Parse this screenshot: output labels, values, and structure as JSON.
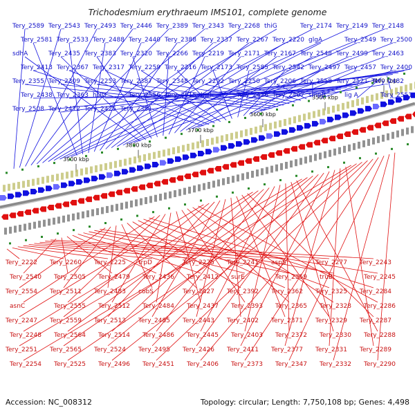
{
  "header": {
    "title": "Trichodesmium erythraeum IMS101, complete genome"
  },
  "footer": {
    "accession": "Accession: NC_008312",
    "summary": "Topology: circular; Length: 7,750,108 bp; Genes: 4,498"
  },
  "scale_ticks": [
    "3900 kbp",
    "3800 kbp",
    "3700 kbp",
    "3600 kbp",
    "3500 kbp",
    "3400 kbp"
  ],
  "colors": {
    "forward": "#1010e0",
    "reverse": "#e01010",
    "backbone": "#888888",
    "marker": "#2a8a2a"
  },
  "forward_genes": [
    "Tery_2589",
    "Tery_2543",
    "Tery_2493",
    "Tery_2446",
    "Tery_2389",
    "Tery_2343",
    "Tery_2268",
    "thiG",
    "Tery_2174",
    "Tery_2149",
    "Tery_2148",
    "Tery_2581",
    "Tery_2533",
    "Tery_2488",
    "Tery_2440",
    "Tery_2388",
    "Tery_2337",
    "Tery_2267",
    "Tery_2220",
    "glgA",
    "Tery_2549",
    "Tery_2500",
    "sdhA",
    "Tery_2435",
    "Tery_2383",
    "Tery_2320",
    "Tery_2266",
    "Tery_2219",
    "Tery_2171",
    "Tery_2167",
    "Tery_2548",
    "Tery_2499",
    "Tery_2463",
    "Tery_2413",
    "Tery_2367",
    "Tery_2317",
    "Tery_2259",
    "Tery_2216",
    "Tery_2173",
    "Tery_2585",
    "Tery_2542",
    "Tery_2497",
    "Tery_2457",
    "Tery_2400",
    "Tery_2355",
    "Tery_2309",
    "Tery_2253",
    "Tery_2387",
    "Tery_2348",
    "Tery_2292",
    "Tery_2250",
    "Tery_2206",
    "Tery_2558",
    "Tery_2521",
    "Tery_2482",
    "Tery_2438",
    "Tery_2363",
    "hslO",
    "Tery_2556",
    "Tery_2515",
    "hisI",
    "Tery_2456",
    "Tery_2407",
    "smpB",
    "lig A",
    "Tery_2551",
    "Tery_2508",
    "Tery_2472",
    "Tery_2425",
    "Tery_2381"
  ],
  "reverse_genes": [
    "Tery_2222",
    "Tery_2260",
    "Tery_2225",
    "trpD",
    "Tery_2275",
    "Tery_2241",
    "aspS",
    "Tery_2277",
    "Tery_2243",
    "Tery_2540",
    "Tery_2505",
    "Tery_2479",
    "Tery_2436",
    "Tery_2412",
    "surE",
    "Tery_2359",
    "truB",
    "Tery_2245",
    "Tery_2554",
    "Tery_2511",
    "Tery_2483",
    "cobS",
    "Tery_2427",
    "Tery_2392",
    "Tery_2362",
    "Tery_2325",
    "Tery_2284",
    "asnC",
    "Tery_2555",
    "Tery_2512",
    "Tery_2484",
    "Tery_2437",
    "Tery_2393",
    "Tery_2365",
    "Tery_2328",
    "Tery_2286",
    "Tery_2247",
    "Tery_2559",
    "Tery_2513",
    "Tery_2485",
    "Tery_2443",
    "Tery_2402",
    "Tery_2371",
    "Tery_2329",
    "Tery_2287",
    "Tery_2248",
    "Tery_2564",
    "Tery_2514",
    "Tery_2486",
    "Tery_2445",
    "Tery_2403",
    "Tery_2372",
    "Tery_2330",
    "Tery_2288",
    "Tery_2251",
    "Tery_2565",
    "Tery_2524",
    "Tery_2495",
    "Tery_2426",
    "Tery_2411",
    "Tery_2377",
    "Tery_2331",
    "Tery_2289",
    "Tery_2254",
    "Tery_2525",
    "Tery_2496",
    "Tery_2451",
    "Tery_2406",
    "Tery_2373",
    "Tery_2347",
    "Tery_2332",
    "Tery_2290"
  ]
}
